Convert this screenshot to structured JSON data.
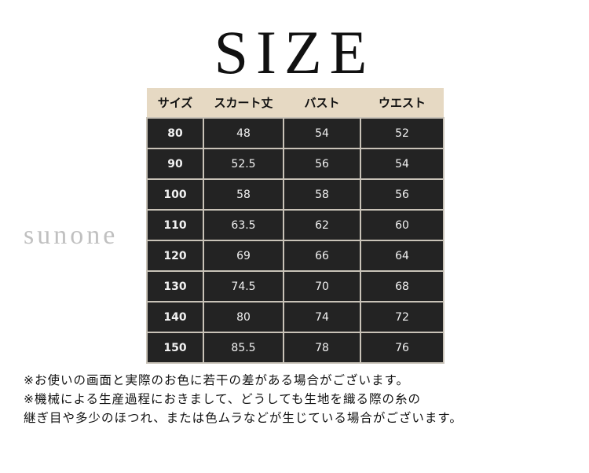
{
  "title": "SIZE",
  "table": {
    "headers": [
      "サイズ",
      "スカート丈",
      "バスト",
      "ウエスト"
    ],
    "rows": [
      [
        "80",
        "48",
        "54",
        "52"
      ],
      [
        "90",
        "52.5",
        "56",
        "54"
      ],
      [
        "100",
        "58",
        "58",
        "56"
      ],
      [
        "110",
        "63.5",
        "62",
        "60"
      ],
      [
        "120",
        "69",
        "66",
        "64"
      ],
      [
        "130",
        "74.5",
        "70",
        "68"
      ],
      [
        "140",
        "80",
        "74",
        "72"
      ],
      [
        "150",
        "85.5",
        "78",
        "76"
      ]
    ]
  },
  "watermark": "sunone",
  "notes": [
    "※お使いの画面と実際のお色に若干の差がある場合がございます。",
    "※機械による生産過程におきまして、どうしても生地を織る際の糸の",
    "継ぎ目や多少のほつれ、または色ムラなどが生じている場合がございます。"
  ],
  "colors": {
    "header_bg": "#e6d9c3",
    "cell_bg": "#232323",
    "border": "#c9c3b8"
  }
}
